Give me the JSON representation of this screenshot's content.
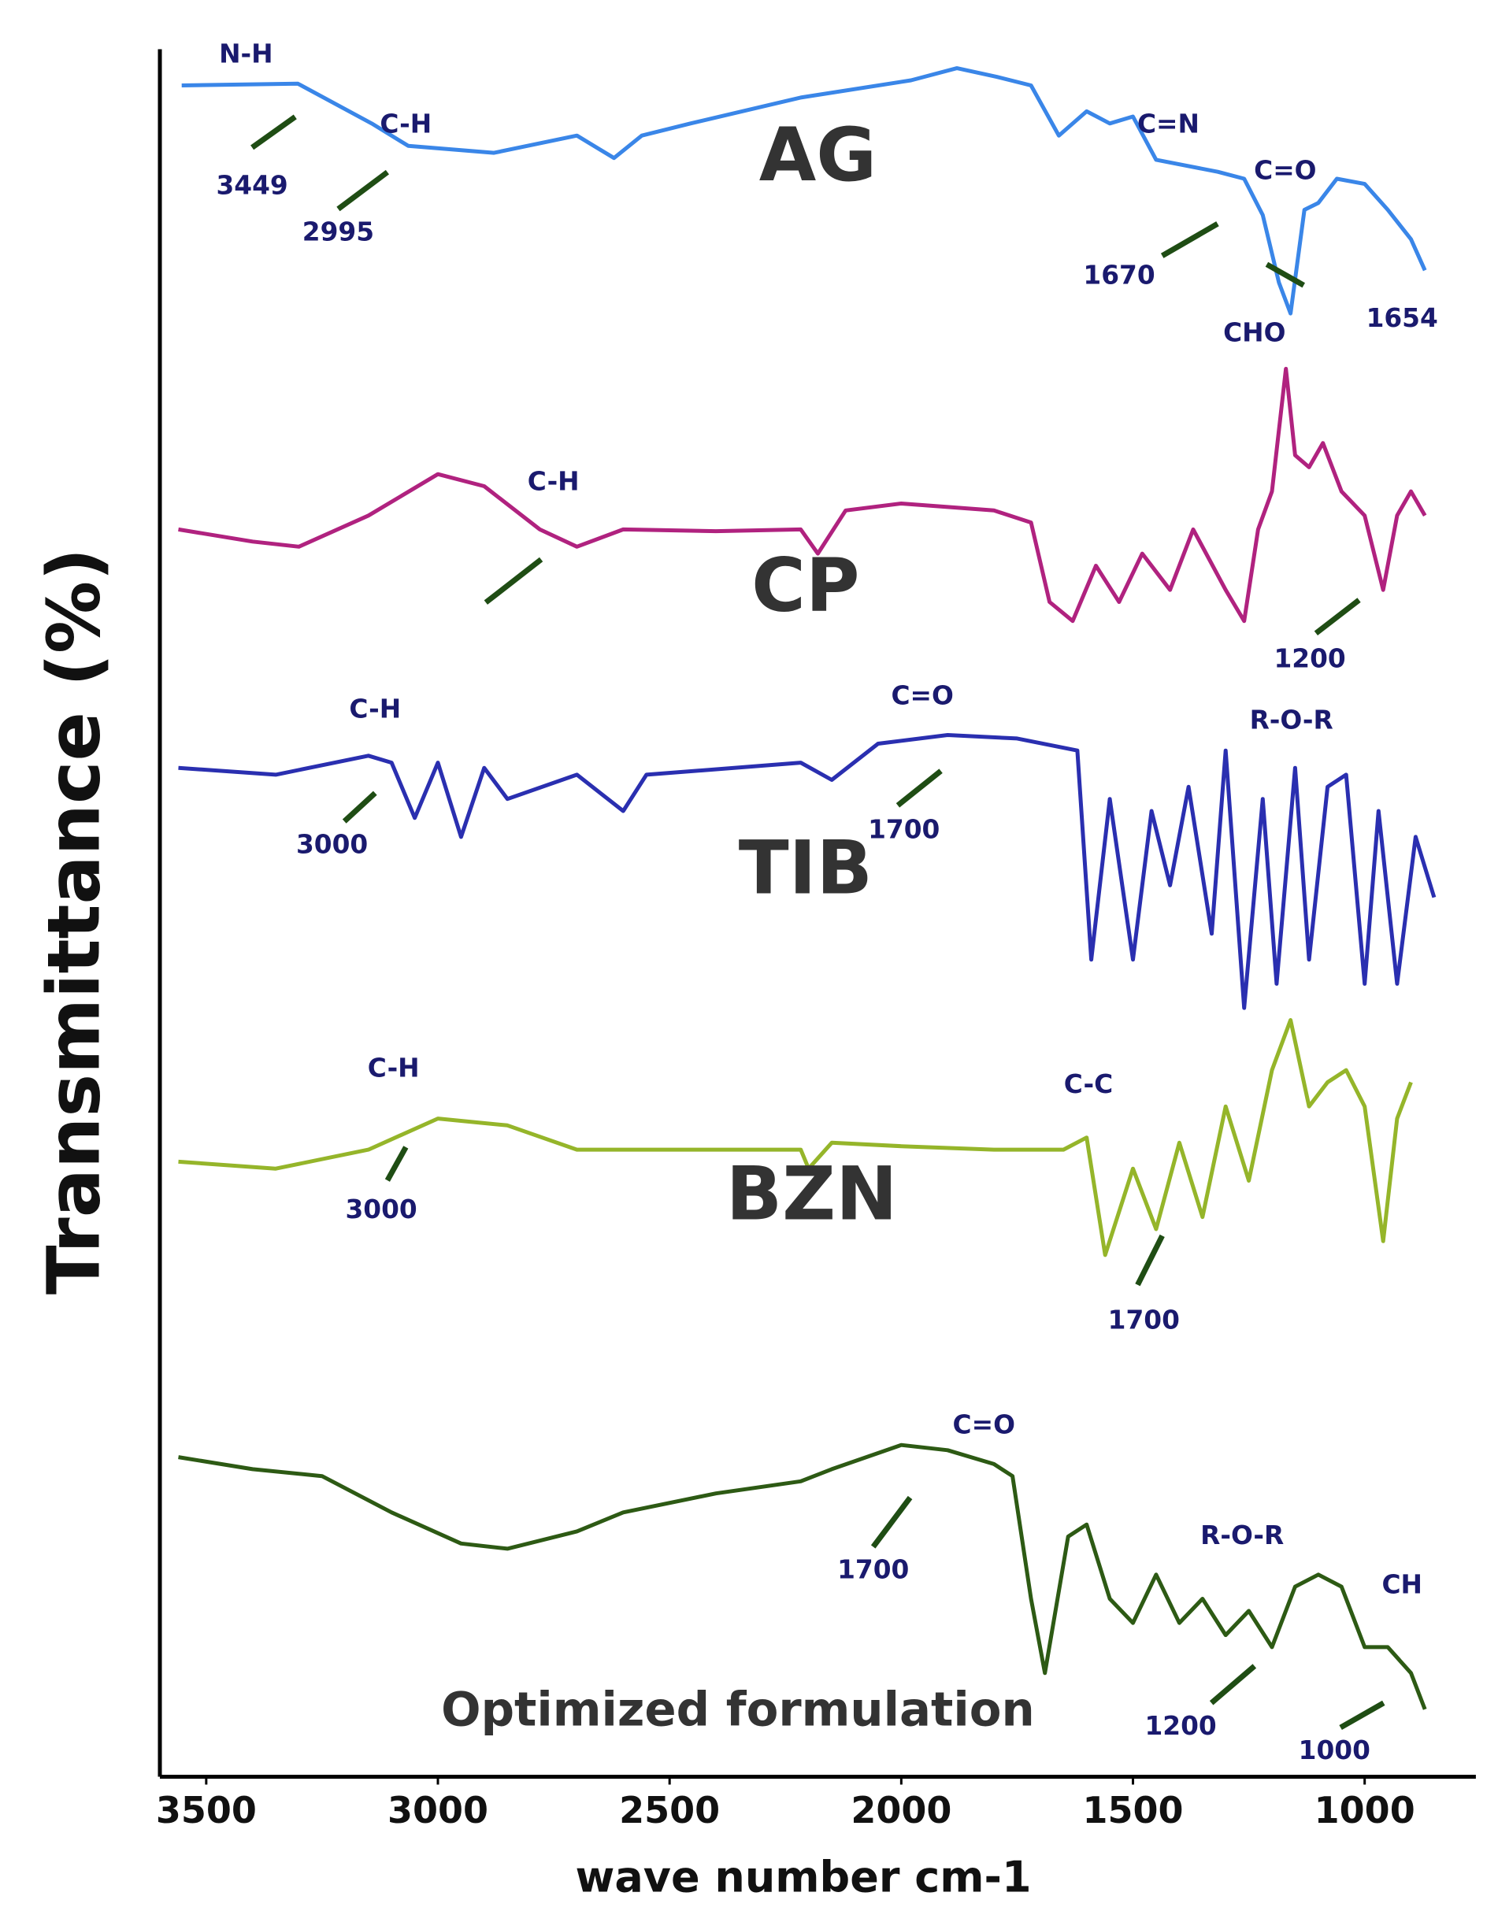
{
  "chart_data": {
    "type": "line",
    "x_label": "wave number cm-1",
    "y_label": "Transmittance (%)",
    "xlim": [
      3600,
      760
    ],
    "ylim": [
      0,
      100
    ],
    "xticks": [
      3500,
      3000,
      2500,
      2000,
      1500,
      1000
    ],
    "series": [
      {
        "name": "AG",
        "color": "#3a86e8",
        "x": [
          3553,
          3302,
          3143,
          3064,
          2879,
          2700,
          2620,
          2560,
          2455,
          2217,
          1979,
          1880,
          1794,
          1720,
          1660,
          1600,
          1550,
          1500,
          1450,
          1317,
          1260,
          1220,
          1185,
          1160,
          1130,
          1100,
          1060,
          1000,
          950,
          900,
          870
        ],
        "values": [
          97.9,
          98.0,
          95.7,
          94.4,
          94.0,
          95.0,
          93.7,
          95.0,
          95.7,
          97.2,
          98.2,
          98.9,
          98.4,
          97.9,
          95.0,
          96.4,
          95.7,
          96.1,
          93.6,
          92.9,
          92.5,
          90.4,
          86.5,
          84.7,
          90.7,
          91.1,
          92.5,
          92.2,
          90.7,
          89.0,
          87.2
        ]
      },
      {
        "name": "CP",
        "color": "#b0227f",
        "x": [
          3560,
          3400,
          3300,
          3150,
          3000,
          2900,
          2780,
          2700,
          2600,
          2400,
          2217,
          2180,
          2120,
          2000,
          1900,
          1800,
          1720,
          1680,
          1630,
          1580,
          1530,
          1480,
          1420,
          1370,
          1300,
          1260,
          1230,
          1200,
          1170,
          1150,
          1120,
          1090,
          1050,
          1000,
          960,
          930,
          900,
          870
        ],
        "values": [
          72.2,
          71.5,
          71.2,
          73.0,
          75.4,
          74.7,
          72.2,
          71.2,
          72.2,
          72.1,
          72.2,
          70.8,
          73.3,
          73.7,
          73.5,
          73.3,
          72.6,
          68.0,
          66.9,
          70.1,
          68.0,
          70.8,
          68.7,
          72.2,
          68.7,
          66.9,
          72.2,
          74.4,
          81.5,
          76.5,
          75.8,
          77.2,
          74.4,
          73.0,
          68.7,
          73.0,
          74.4,
          73.0
        ]
      },
      {
        "name": "TIB",
        "color": "#2a2fb0",
        "x": [
          3560,
          3350,
          3150,
          3100,
          3050,
          3000,
          2950,
          2900,
          2850,
          2700,
          2600,
          2550,
          2217,
          2150,
          2050,
          1900,
          1750,
          1620,
          1590,
          1550,
          1500,
          1460,
          1420,
          1380,
          1330,
          1300,
          1260,
          1220,
          1190,
          1150,
          1120,
          1080,
          1040,
          1000,
          970,
          930,
          890,
          850
        ],
        "values": [
          58.4,
          58.0,
          59.1,
          58.7,
          55.5,
          58.7,
          54.4,
          58.4,
          56.6,
          58.0,
          55.9,
          58.0,
          58.7,
          57.7,
          59.8,
          60.3,
          60.1,
          59.4,
          47.3,
          56.6,
          47.3,
          55.9,
          51.6,
          57.3,
          48.8,
          59.4,
          44.5,
          56.6,
          45.9,
          58.4,
          47.3,
          57.3,
          58.0,
          45.9,
          55.9,
          45.9,
          54.4,
          50.9
        ]
      },
      {
        "name": "BZN",
        "color": "#95b52a",
        "x": [
          3560,
          3350,
          3150,
          3000,
          2850,
          2700,
          2500,
          2217,
          2200,
          2150,
          2000,
          1800,
          1650,
          1600,
          1560,
          1500,
          1450,
          1400,
          1350,
          1300,
          1250,
          1200,
          1160,
          1120,
          1080,
          1040,
          1000,
          960,
          930,
          900
        ],
        "values": [
          35.6,
          35.2,
          36.3,
          38.1,
          37.7,
          36.3,
          36.3,
          36.3,
          35.2,
          36.7,
          36.5,
          36.3,
          36.3,
          37.0,
          30.2,
          35.2,
          31.7,
          36.7,
          32.4,
          38.8,
          34.5,
          40.9,
          43.8,
          38.8,
          40.2,
          40.9,
          38.8,
          31.0,
          38.1,
          40.2
        ]
      },
      {
        "name": "Optimized formulation",
        "color": "#2d5a14",
        "x": [
          3560,
          3400,
          3250,
          3100,
          2950,
          2850,
          2700,
          2600,
          2400,
          2217,
          2150,
          2000,
          1900,
          1800,
          1760,
          1720,
          1690,
          1640,
          1600,
          1550,
          1500,
          1450,
          1400,
          1350,
          1300,
          1250,
          1200,
          1150,
          1100,
          1050,
          1000,
          950,
          900,
          870
        ],
        "values": [
          18.5,
          17.8,
          17.4,
          15.3,
          13.5,
          13.2,
          14.2,
          15.3,
          16.4,
          17.1,
          17.8,
          19.2,
          18.9,
          18.1,
          17.4,
          10.3,
          6.0,
          13.9,
          14.6,
          10.3,
          8.9,
          11.7,
          8.9,
          10.3,
          8.2,
          9.6,
          7.5,
          11.0,
          11.7,
          11.0,
          7.5,
          7.5,
          6.0,
          3.9
        ]
      }
    ],
    "annotations": [
      "N-H",
      "3449",
      "C-H",
      "2995",
      "C=N",
      "C=O",
      "1670",
      "CHO",
      "1654",
      "C-H",
      "1200",
      "C-H",
      "C=O",
      "3000",
      "1700",
      "R-O-R",
      "C-H",
      "3000",
      "C-C",
      "1700",
      "C=O",
      "1700",
      "R-O-R",
      "CH",
      "1200",
      "1000"
    ]
  }
}
